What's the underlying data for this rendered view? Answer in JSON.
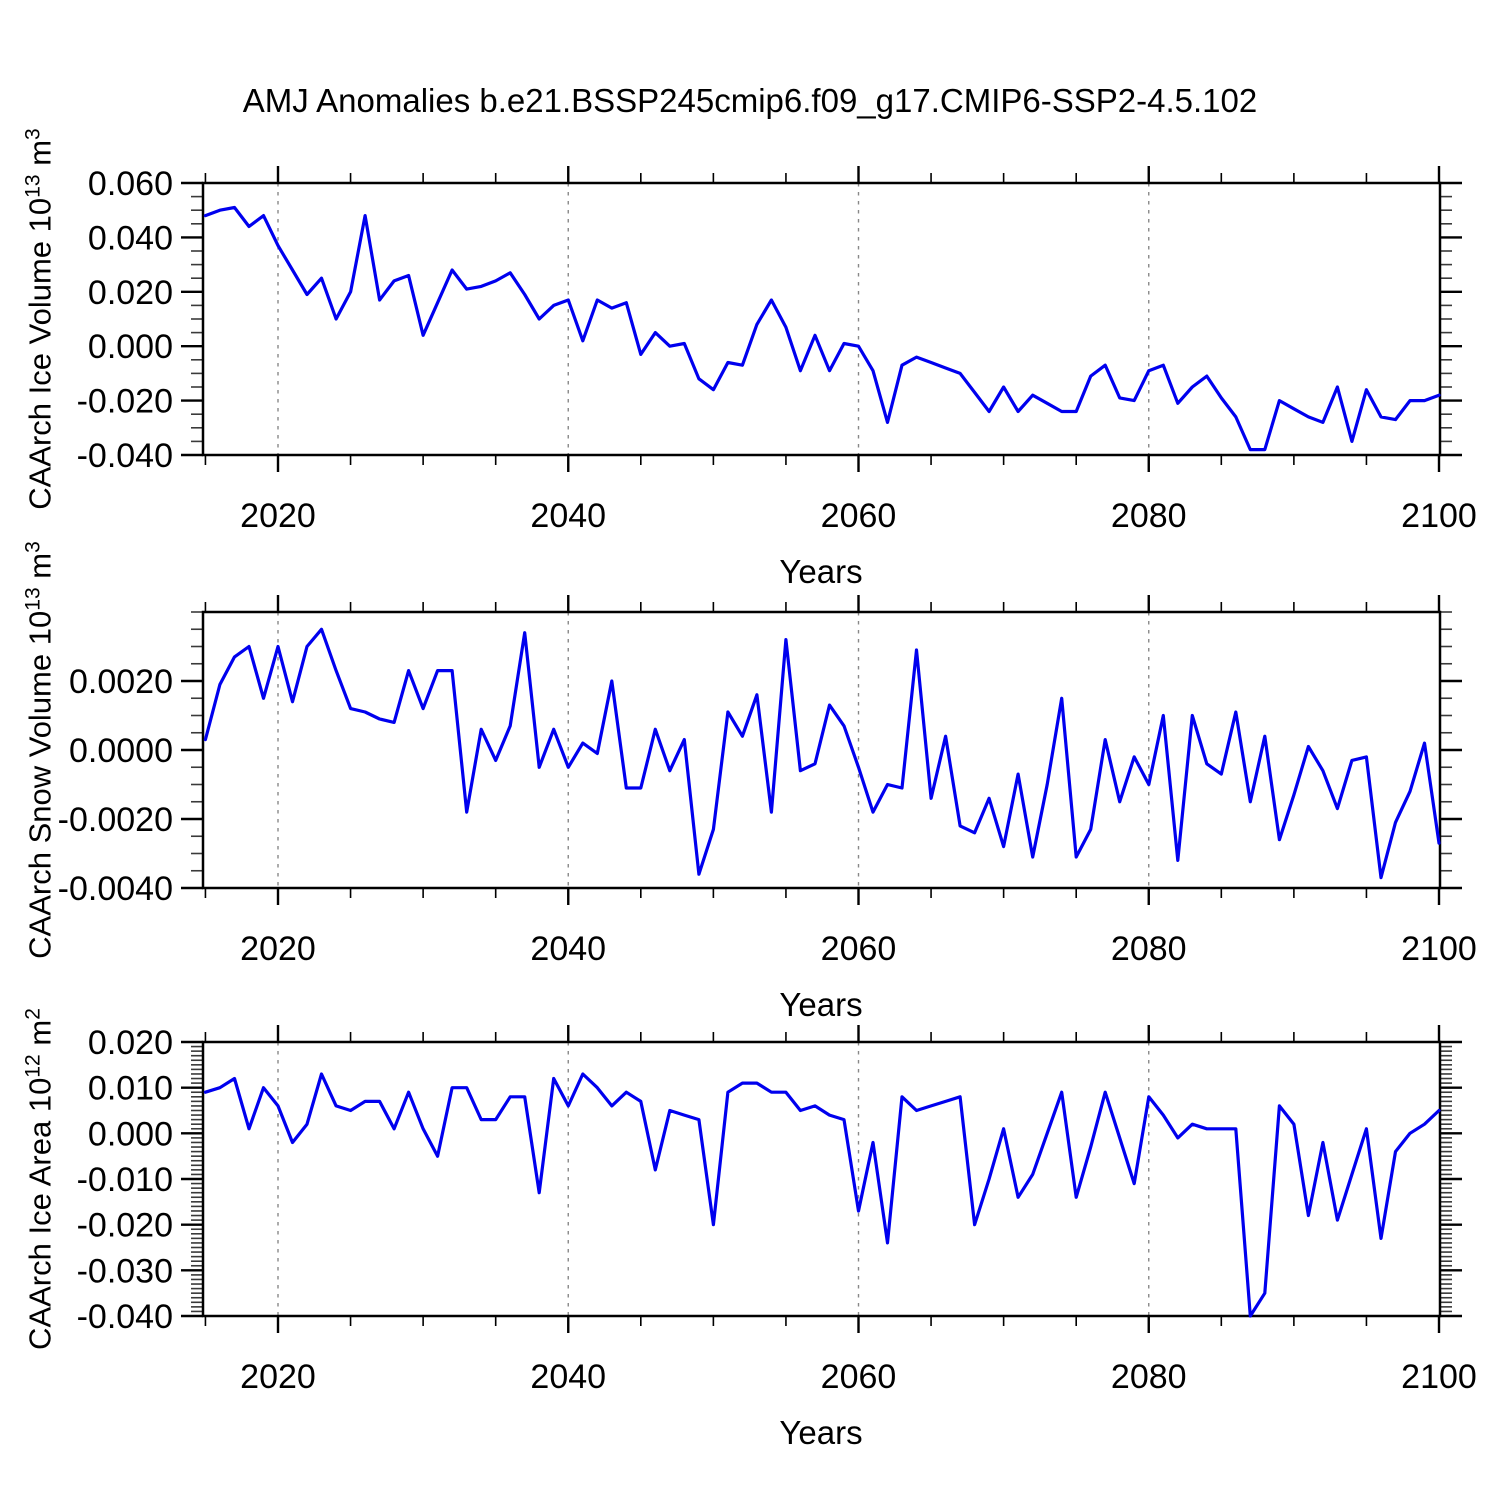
{
  "title": "AMJ Anomalies b.e21.BSSP245cmip6.f09_g17.CMIP6-SSP2-4.5.102",
  "colors": {
    "line": "#0000ee",
    "axis": "#000000",
    "grid": "#888888",
    "background": "#ffffff"
  },
  "years": [
    2015,
    2016,
    2017,
    2018,
    2019,
    2020,
    2021,
    2022,
    2023,
    2024,
    2025,
    2026,
    2027,
    2028,
    2029,
    2030,
    2031,
    2032,
    2033,
    2034,
    2035,
    2036,
    2037,
    2038,
    2039,
    2040,
    2041,
    2042,
    2043,
    2044,
    2045,
    2046,
    2047,
    2048,
    2049,
    2050,
    2051,
    2052,
    2053,
    2054,
    2055,
    2056,
    2057,
    2058,
    2059,
    2060,
    2061,
    2062,
    2063,
    2064,
    2065,
    2066,
    2067,
    2068,
    2069,
    2070,
    2071,
    2072,
    2073,
    2074,
    2075,
    2076,
    2077,
    2078,
    2079,
    2080,
    2081,
    2082,
    2083,
    2084,
    2085,
    2086,
    2087,
    2088,
    2089,
    2090,
    2091,
    2092,
    2093,
    2094,
    2095,
    2096,
    2097,
    2098,
    2099,
    2100
  ],
  "chart_data": [
    {
      "type": "line",
      "title": "",
      "ylabel": "CAArch Ice Volume 10^13^ m^3^",
      "xlabel": "Years",
      "ylim": [
        -0.04,
        0.06
      ],
      "ytick_values": [
        0.06,
        0.04,
        0.02,
        0.0,
        -0.02,
        -0.04
      ],
      "ytick_labels": [
        "0.060",
        "0.040",
        "0.020",
        "0.000",
        "-0.020",
        "-0.040"
      ],
      "y_minor_step": 0.005,
      "xlim": [
        2014.8,
        2100.2
      ],
      "xtick_values": [
        2020,
        2040,
        2060,
        2080,
        2100
      ],
      "xtick_labels": [
        "2020",
        "2040",
        "2060",
        "2080",
        "2100"
      ],
      "x_minor_step": 5,
      "grid_x": [
        2020,
        2040,
        2060,
        2080
      ],
      "legend": "none",
      "values": [
        0.048,
        0.05,
        0.051,
        0.044,
        0.048,
        0.037,
        0.028,
        0.019,
        0.025,
        0.01,
        0.02,
        0.048,
        0.017,
        0.024,
        0.026,
        0.004,
        0.016,
        0.028,
        0.021,
        0.022,
        0.024,
        0.027,
        0.019,
        0.01,
        0.015,
        0.017,
        0.002,
        0.017,
        0.014,
        0.016,
        -0.003,
        0.005,
        0.0,
        0.001,
        -0.012,
        -0.016,
        -0.006,
        -0.007,
        0.008,
        0.017,
        0.007,
        -0.009,
        0.004,
        -0.009,
        0.001,
        0.0,
        -0.009,
        -0.028,
        -0.007,
        -0.004,
        -0.006,
        -0.008,
        -0.01,
        -0.017,
        -0.024,
        -0.015,
        -0.024,
        -0.018,
        -0.021,
        -0.024,
        -0.024,
        -0.011,
        -0.007,
        -0.019,
        -0.02,
        -0.009,
        -0.007,
        -0.021,
        -0.015,
        -0.011,
        -0.019,
        -0.026,
        -0.038,
        -0.038,
        -0.02,
        -0.023,
        -0.026,
        -0.028,
        -0.015,
        -0.035,
        -0.016,
        -0.026,
        -0.027,
        -0.02,
        -0.02,
        -0.018
      ]
    },
    {
      "type": "line",
      "title": "",
      "ylabel": "CAArch Snow Volume 10^13^ m^3^",
      "xlabel": "Years",
      "ylim": [
        -0.004,
        0.004
      ],
      "ytick_values": [
        0.002,
        0.0,
        -0.002,
        -0.004
      ],
      "ytick_labels": [
        "0.0020",
        "0.0000",
        "-0.0020",
        "-0.0040"
      ],
      "y_minor_step": 0.0005,
      "xlim": [
        2014.8,
        2100.2
      ],
      "xtick_values": [
        2020,
        2040,
        2060,
        2080,
        2100
      ],
      "xtick_labels": [
        "2020",
        "2040",
        "2060",
        "2080",
        "2100"
      ],
      "x_minor_step": 5,
      "grid_x": [
        2020,
        2040,
        2060,
        2080
      ],
      "legend": "none",
      "values": [
        0.0003,
        0.0019,
        0.0027,
        0.003,
        0.0015,
        0.003,
        0.0014,
        0.003,
        0.0035,
        0.0023,
        0.0012,
        0.0011,
        0.0009,
        0.0008,
        0.0023,
        0.0012,
        0.0023,
        0.0023,
        -0.0018,
        0.0006,
        -0.0003,
        0.0007,
        0.0034,
        -0.0005,
        0.0006,
        -0.0005,
        0.0002,
        -0.0001,
        0.002,
        -0.0011,
        -0.0011,
        0.0006,
        -0.0006,
        0.0003,
        -0.0036,
        -0.0023,
        0.0011,
        0.0004,
        0.0016,
        -0.0018,
        0.0032,
        -0.0006,
        -0.0004,
        0.0013,
        0.0007,
        -0.0005,
        -0.0018,
        -0.001,
        -0.0011,
        0.0029,
        -0.0014,
        0.0004,
        -0.0022,
        -0.0024,
        -0.0014,
        -0.0028,
        -0.0007,
        -0.0031,
        -0.001,
        0.0015,
        -0.0031,
        -0.0023,
        0.0003,
        -0.0015,
        -0.0002,
        -0.001,
        0.001,
        -0.0032,
        0.001,
        -0.0004,
        -0.0007,
        0.0011,
        -0.0015,
        0.0004,
        -0.0026,
        -0.0013,
        0.0001,
        -0.0006,
        -0.0017,
        -0.0003,
        -0.0002,
        -0.0037,
        -0.0021,
        -0.0012,
        0.0002,
        -0.0027
      ]
    },
    {
      "type": "line",
      "title": "",
      "ylabel": "CAArch Ice Area 10^12^ m^2^",
      "xlabel": "Years",
      "ylim": [
        -0.04,
        0.02
      ],
      "ytick_values": [
        0.02,
        0.01,
        0.0,
        -0.01,
        -0.02,
        -0.03,
        -0.04
      ],
      "ytick_labels": [
        "0.020",
        "0.010",
        "0.000",
        "-0.010",
        "-0.020",
        "-0.030",
        "-0.040"
      ],
      "y_minor_step": 0.001,
      "xlim": [
        2014.8,
        2100.2
      ],
      "xtick_values": [
        2020,
        2040,
        2060,
        2080,
        2100
      ],
      "xtick_labels": [
        "2020",
        "2040",
        "2060",
        "2080",
        "2100"
      ],
      "x_minor_step": 5,
      "grid_x": [
        2020,
        2040,
        2060,
        2080
      ],
      "legend": "none",
      "values": [
        0.009,
        0.01,
        0.012,
        0.001,
        0.01,
        0.006,
        -0.002,
        0.002,
        0.013,
        0.006,
        0.005,
        0.007,
        0.007,
        0.001,
        0.009,
        0.001,
        -0.005,
        0.01,
        0.01,
        0.003,
        0.003,
        0.008,
        0.008,
        -0.013,
        0.012,
        0.006,
        0.013,
        0.01,
        0.006,
        0.009,
        0.007,
        -0.008,
        0.005,
        0.004,
        0.003,
        -0.02,
        0.009,
        0.011,
        0.011,
        0.009,
        0.009,
        0.005,
        0.006,
        0.004,
        0.003,
        -0.017,
        -0.002,
        -0.024,
        0.008,
        0.005,
        0.006,
        0.007,
        0.008,
        -0.02,
        -0.01,
        0.001,
        -0.014,
        -0.009,
        0.0,
        0.009,
        -0.014,
        -0.003,
        0.009,
        -0.001,
        -0.011,
        0.008,
        0.004,
        -0.001,
        0.002,
        0.001,
        0.001,
        0.001,
        -0.04,
        -0.035,
        0.006,
        0.002,
        -0.018,
        -0.002,
        -0.019,
        -0.009,
        0.001,
        -0.023,
        -0.004,
        0.0,
        0.002,
        0.005
      ]
    }
  ]
}
